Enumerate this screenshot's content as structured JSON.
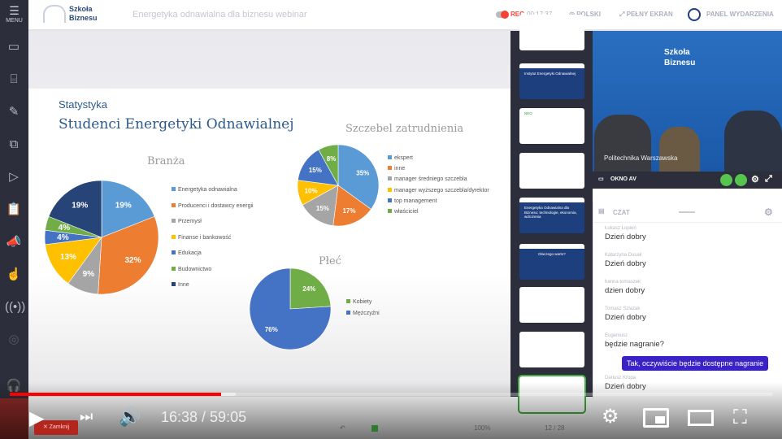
{
  "header": {
    "menu_label": "MENU",
    "logo_text_1": "Szkoła",
    "logo_text_2": "Biznesu",
    "title": "Energetyka odnawialna dla biznesu webinar",
    "rec_label": "REC",
    "rec_time": "00:17:37",
    "language": "POLSKI",
    "fullscreen": "PEŁNY EKRAN",
    "event_panel": "PANEL WYDARZENIA"
  },
  "sidebar": {
    "icons": [
      "video-camera-icon",
      "presentation-icon",
      "pen-icon",
      "screen-share-icon",
      "play-video-icon",
      "clipboard-check-icon",
      "megaphone-icon",
      "touch-icon",
      "broadcast-icon",
      "podcast-icon",
      "headset-icon"
    ]
  },
  "slide": {
    "heading_small": "Statystyka",
    "heading_large": "Studenci Energetyki Odnawialnej"
  },
  "chart_data": [
    {
      "type": "pie",
      "title": "Branża",
      "categories": [
        "Energetyka odnawialna",
        "Producenci i dostawcy energii",
        "Przemysł",
        "Finanse i bankowość",
        "Edukacja",
        "Budownictwo",
        "Inne"
      ],
      "values": [
        19,
        32,
        9,
        13,
        4,
        4,
        19
      ],
      "labels": [
        "19%",
        "32%",
        "9%",
        "13%",
        "4%",
        "4%",
        "19%"
      ],
      "colors": [
        "#5b9bd5",
        "#ed7d31",
        "#a5a5a5",
        "#ffc000",
        "#4472c4",
        "#70ad47",
        "#264478"
      ],
      "legend": "right"
    },
    {
      "type": "pie",
      "title": "Szczebel zatrudnienia",
      "categories": [
        "ekspert",
        "inne",
        "manager średniego szczebla",
        "manager wyższego szczebla/dyrektor",
        "top management",
        "właściciel"
      ],
      "values": [
        35,
        17,
        15,
        10,
        15,
        8
      ],
      "labels": [
        "35%",
        "17%",
        "15%",
        "10%",
        "15%",
        "8%"
      ],
      "colors": [
        "#5b9bd5",
        "#ed7d31",
        "#a5a5a5",
        "#ffc000",
        "#4472c4",
        "#70ad47"
      ],
      "legend": "right"
    },
    {
      "type": "pie",
      "title": "Płeć",
      "categories": [
        "Kobiety",
        "Mężczyźni"
      ],
      "values": [
        24,
        76
      ],
      "labels": [
        "24%",
        "76%"
      ],
      "colors": [
        "#70ad47",
        "#4472c4"
      ],
      "legend": "right"
    }
  ],
  "thumbnails": [
    {
      "text": ""
    },
    {
      "text": "Instytut Energetyki Odnawialnej"
    },
    {
      "text": "NEO"
    },
    {
      "text": ""
    },
    {
      "text": "Energetyka Odnawialna dla Biznesu: technologie, ekonomia, wdrożenia"
    },
    {
      "text": "Dlaczego warto?"
    },
    {
      "text": ""
    },
    {
      "text": ""
    },
    {
      "text": ""
    }
  ],
  "video": {
    "caption": "Politechnika Warszawska",
    "av_label": "OKNO AV"
  },
  "chat": {
    "title": "CZAT",
    "messages": [
      {
        "name": "Łukasz Łopień",
        "text": "Dzień dobry"
      },
      {
        "name": "Katarzyna Dusak",
        "text": "Dzień dobry"
      },
      {
        "name": "hanna tomaszek",
        "text": "dzien dobry"
      },
      {
        "name": "Tomasz Szlazak",
        "text": "Dzień dobry"
      },
      {
        "name": "Eugeniusz",
        "text": "będzie nagranie?"
      },
      {
        "name": "Dariusz Kropa",
        "text": "Dzień dobry"
      }
    ],
    "own_message": "Tak, oczywiście będzie dostępne nagranie"
  },
  "bottom_tools": {
    "close_label": "✕ Zamknij",
    "zoom": "100%",
    "page": "12 / 28"
  },
  "player": {
    "current_time": "16:38",
    "duration": "59:05",
    "time_text": "16:38 / 59:05",
    "progress_percent": 27.7,
    "accent": "#ff0000"
  }
}
